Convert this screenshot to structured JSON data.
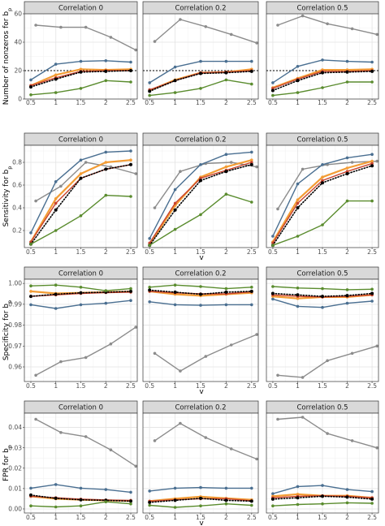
{
  "chart_data": {
    "type": "line",
    "layout": "small-multiples",
    "panel_titles": [
      "Correlation 0",
      "Correlation 0.2",
      "Correlation 0.5"
    ],
    "x": [
      0.5,
      1,
      1.5,
      2,
      2.5
    ],
    "x_ticks": [
      "0.5",
      "1",
      "1.5",
      "2",
      "2.5"
    ],
    "xlabel": "v",
    "grid": true,
    "legend": "none",
    "colors": {
      "grey": "#8c8c8c",
      "blue": "#4a6f91",
      "orange": "#f39c34",
      "red": "#c8432d",
      "green": "#5a8c2e",
      "black": "#000000"
    },
    "rows": [
      {
        "ylabel": "Number of nonzeros for b",
        "ylabel_sub": "p",
        "ylim": [
          0,
          60
        ],
        "y_ticks": [
          0,
          20,
          40,
          60
        ],
        "reference_line": 20,
        "series_by_panel": [
          [
            {
              "color": "grey",
              "x": [
                0.6,
                1.1,
                1.6,
                2.1,
                2.6
              ],
              "values": [
                52,
                50.5,
                50.5,
                43.5,
                34.5
              ]
            },
            {
              "color": "blue",
              "values": [
                13.5,
                24.5,
                26.5,
                27,
                26
              ]
            },
            {
              "color": "orange",
              "values": [
                9.5,
                17,
                21,
                20.5,
                21
              ]
            },
            {
              "color": "red",
              "values": [
                9.5,
                15,
                19.5,
                20,
                20
              ]
            },
            {
              "color": "black",
              "style": "dotted",
              "values": [
                8.5,
                14,
                19,
                19.5,
                20
              ]
            },
            {
              "color": "green",
              "values": [
                3,
                4.5,
                7.5,
                13,
                12
              ]
            }
          ],
          [
            {
              "color": "grey",
              "x": [
                0.6,
                1.1,
                1.6,
                2.1,
                2.6
              ],
              "values": [
                40.5,
                56,
                51,
                45.5,
                39.5
              ]
            },
            {
              "color": "blue",
              "values": [
                11.5,
                22.5,
                26.5,
                26.5,
                26.5
              ]
            },
            {
              "color": "orange",
              "values": [
                6,
                13.5,
                18.5,
                19,
                21
              ]
            },
            {
              "color": "red",
              "values": [
                6.5,
                13,
                18.5,
                19,
                20
              ]
            },
            {
              "color": "black",
              "style": "dotted",
              "values": [
                5.5,
                13,
                18,
                18.5,
                19.5
              ]
            },
            {
              "color": "green",
              "values": [
                2.5,
                4.5,
                7.5,
                13.5,
                10.5
              ]
            }
          ],
          [
            {
              "color": "grey",
              "x": [
                0.6,
                1.1,
                1.6,
                2.1,
                2.6
              ],
              "values": [
                52,
                58.5,
                53,
                49.5,
                45.5
              ]
            },
            {
              "color": "blue",
              "values": [
                11.5,
                23,
                27.5,
                26.5,
                26
              ]
            },
            {
              "color": "orange",
              "values": [
                8,
                14.5,
                20.5,
                20.5,
                21
              ]
            },
            {
              "color": "red",
              "values": [
                7.5,
                14,
                19.5,
                19.5,
                20
              ]
            },
            {
              "color": "black",
              "style": "dotted",
              "values": [
                6,
                13,
                18.5,
                19,
                19.5
              ]
            },
            {
              "color": "green",
              "values": [
                2.5,
                4.5,
                8,
                12,
                12
              ]
            }
          ]
        ]
      },
      {
        "ylabel": "Sensitivity for b",
        "ylabel_sub": "p",
        "ylim": [
          0.05,
          0.95
        ],
        "y_ticks": [
          0.2,
          0.4,
          0.6,
          0.8
        ],
        "series_by_panel": [
          [
            {
              "color": "grey",
              "x": [
                0.6,
                1.1,
                1.6,
                2.1,
                2.6
              ],
              "values": [
                0.46,
                0.59,
                0.8,
                0.76,
                0.7
              ]
            },
            {
              "color": "blue",
              "values": [
                0.18,
                0.63,
                0.82,
                0.89,
                0.9
              ]
            },
            {
              "color": "orange",
              "values": [
                0.1,
                0.48,
                0.7,
                0.8,
                0.82
              ]
            },
            {
              "color": "red",
              "values": [
                0.1,
                0.44,
                0.66,
                0.74,
                0.78
              ]
            },
            {
              "color": "black",
              "style": "dotted",
              "values": [
                0.08,
                0.38,
                0.66,
                0.74,
                0.78
              ]
            },
            {
              "color": "green",
              "values": [
                0.08,
                0.2,
                0.33,
                0.51,
                0.5
              ]
            }
          ],
          [
            {
              "color": "grey",
              "x": [
                0.6,
                1.1,
                1.6,
                2.1,
                2.6
              ],
              "values": [
                0.4,
                0.72,
                0.79,
                0.8,
                0.76
              ]
            },
            {
              "color": "blue",
              "values": [
                0.13,
                0.56,
                0.78,
                0.87,
                0.89
              ]
            },
            {
              "color": "orange",
              "values": [
                0.08,
                0.42,
                0.67,
                0.76,
                0.82
              ]
            },
            {
              "color": "red",
              "values": [
                0.09,
                0.44,
                0.66,
                0.73,
                0.8
              ]
            },
            {
              "color": "black",
              "style": "dotted",
              "values": [
                0.07,
                0.38,
                0.64,
                0.72,
                0.78
              ]
            },
            {
              "color": "green",
              "values": [
                0.07,
                0.21,
                0.34,
                0.52,
                0.45
              ]
            }
          ],
          [
            {
              "color": "grey",
              "x": [
                0.6,
                1.1,
                1.6,
                2.1,
                2.6
              ],
              "values": [
                0.39,
                0.74,
                0.78,
                0.8,
                0.81
              ]
            },
            {
              "color": "blue",
              "values": [
                0.15,
                0.61,
                0.78,
                0.84,
                0.87
              ]
            },
            {
              "color": "orange",
              "values": [
                0.1,
                0.47,
                0.67,
                0.75,
                0.81
              ]
            },
            {
              "color": "red",
              "values": [
                0.09,
                0.44,
                0.64,
                0.72,
                0.79
              ]
            },
            {
              "color": "black",
              "style": "dotted",
              "values": [
                0.07,
                0.4,
                0.62,
                0.7,
                0.77
              ]
            },
            {
              "color": "green",
              "values": [
                0.07,
                0.15,
                0.25,
                0.46,
                0.46
              ]
            }
          ]
        ]
      },
      {
        "ylabel": "Specificity for b",
        "ylabel_sub": "p",
        "ylim": [
          0.953,
          1.002
        ],
        "y_ticks": [
          0.96,
          0.97,
          0.98,
          0.99,
          1.0
        ],
        "y_tick_labels": [
          "0.96",
          "0.97",
          "0.98",
          "0.99",
          "1.00"
        ],
        "series_by_panel": [
          [
            {
              "color": "grey",
              "x": [
                0.6,
                1.1,
                1.6,
                2.1,
                2.6
              ],
              "values": [
                0.956,
                0.9625,
                0.9645,
                0.971,
                0.979
              ]
            },
            {
              "color": "blue",
              "values": [
                0.9898,
                0.988,
                0.9898,
                0.9905,
                0.9918
              ]
            },
            {
              "color": "orange",
              "values": [
                0.9962,
                0.9952,
                0.9955,
                0.9958,
                0.9961
              ]
            },
            {
              "color": "red",
              "values": [
                0.9938,
                0.9945,
                0.9952,
                0.9956,
                0.9958
              ]
            },
            {
              "color": "black",
              "style": "dotted",
              "values": [
                0.9938,
                0.9948,
                0.9955,
                0.9958,
                0.9962
              ]
            },
            {
              "color": "green",
              "values": [
                0.9988,
                0.9992,
                0.9982,
                0.9965,
                0.9975
              ]
            }
          ],
          [
            {
              "color": "grey",
              "x": [
                0.6,
                1.1,
                1.6,
                2.1,
                2.6
              ],
              "values": [
                0.9665,
                0.958,
                0.965,
                0.9705,
                0.9755
              ]
            },
            {
              "color": "blue",
              "values": [
                0.9912,
                0.9898,
                0.9895,
                0.9898,
                0.9898
              ]
            },
            {
              "color": "orange",
              "values": [
                0.9962,
                0.9948,
                0.9941,
                0.9948,
                0.9955
              ]
            },
            {
              "color": "red",
              "values": [
                0.9962,
                0.9955,
                0.995,
                0.995,
                0.996
              ]
            },
            {
              "color": "black",
              "style": "dotted",
              "values": [
                0.9968,
                0.9958,
                0.9948,
                0.9958,
                0.9962
              ]
            },
            {
              "color": "green",
              "values": [
                0.9982,
                0.9992,
                0.9985,
                0.9975,
                0.9982
              ]
            }
          ],
          [
            {
              "color": "grey",
              "x": [
                0.6,
                1.1,
                1.6,
                2.1,
                2.6
              ],
              "values": [
                0.956,
                0.955,
                0.963,
                0.9665,
                0.97
              ]
            },
            {
              "color": "blue",
              "values": [
                0.9925,
                0.989,
                0.9885,
                0.9905,
                0.9915
              ]
            },
            {
              "color": "orange",
              "values": [
                0.9938,
                0.9928,
                0.9935,
                0.9935,
                0.9945
              ]
            },
            {
              "color": "red",
              "values": [
                0.9945,
                0.9938,
                0.9935,
                0.9938,
                0.9945
              ]
            },
            {
              "color": "black",
              "style": "dotted",
              "values": [
                0.9952,
                0.9945,
                0.9938,
                0.9942,
                0.9952
              ]
            },
            {
              "color": "green",
              "values": [
                0.9985,
                0.9978,
                0.9975,
                0.997,
                0.9972
              ]
            }
          ]
        ]
      },
      {
        "ylabel": "FPR for b",
        "ylabel_sub": "p",
        "ylim": [
          -0.002,
          0.047
        ],
        "y_ticks": [
          0.0,
          0.01,
          0.02,
          0.03,
          0.04
        ],
        "y_tick_labels": [
          "0.00",
          "0.01",
          "0.02",
          "0.03",
          "0.04"
        ],
        "series_by_panel": [
          [
            {
              "color": "grey",
              "x": [
                0.6,
                1.1,
                1.6,
                2.1,
                2.6
              ],
              "values": [
                0.044,
                0.0375,
                0.0355,
                0.029,
                0.021
              ]
            },
            {
              "color": "blue",
              "values": [
                0.0102,
                0.012,
                0.0102,
                0.0095,
                0.0082
              ]
            },
            {
              "color": "orange",
              "values": [
                0.0062,
                0.005,
                0.0045,
                0.0042,
                0.0039
              ]
            },
            {
              "color": "red",
              "values": [
                0.0062,
                0.0055,
                0.0048,
                0.0044,
                0.0042
              ]
            },
            {
              "color": "black",
              "style": "dotted",
              "values": [
                0.0068,
                0.0052,
                0.0045,
                0.0042,
                0.0038
              ]
            },
            {
              "color": "green",
              "values": [
                0.0015,
                0.001,
                0.0015,
                0.0035,
                0.0025
              ]
            }
          ],
          [
            {
              "color": "grey",
              "x": [
                0.6,
                1.1,
                1.6,
                2.1,
                2.6
              ],
              "values": [
                0.0335,
                0.042,
                0.035,
                0.0295,
                0.0245
              ]
            },
            {
              "color": "blue",
              "values": [
                0.0088,
                0.0102,
                0.0105,
                0.0102,
                0.0102
              ]
            },
            {
              "color": "orange",
              "values": [
                0.0038,
                0.005,
                0.006,
                0.0052,
                0.0045
              ]
            },
            {
              "color": "red",
              "values": [
                0.0038,
                0.0045,
                0.005,
                0.005,
                0.004
              ]
            },
            {
              "color": "black",
              "style": "dotted",
              "values": [
                0.0032,
                0.0042,
                0.0052,
                0.0042,
                0.0038
              ]
            },
            {
              "color": "green",
              "values": [
                0.0018,
                0.0008,
                0.0015,
                0.0025,
                0.0018
              ]
            }
          ],
          [
            {
              "color": "grey",
              "x": [
                0.6,
                1.1,
                1.6,
                2.1,
                2.6
              ],
              "values": [
                0.044,
                0.045,
                0.037,
                0.0335,
                0.03
              ]
            },
            {
              "color": "blue",
              "values": [
                0.0075,
                0.011,
                0.0115,
                0.0095,
                0.0085
              ]
            },
            {
              "color": "orange",
              "values": [
                0.0062,
                0.0072,
                0.0065,
                0.0065,
                0.0055
              ]
            },
            {
              "color": "red",
              "values": [
                0.0055,
                0.0062,
                0.0065,
                0.0062,
                0.0055
              ]
            },
            {
              "color": "black",
              "style": "dotted",
              "values": [
                0.0048,
                0.0055,
                0.0062,
                0.0058,
                0.0048
              ]
            },
            {
              "color": "green",
              "values": [
                0.0015,
                0.0022,
                0.0025,
                0.003,
                0.0028
              ]
            }
          ]
        ]
      }
    ]
  }
}
